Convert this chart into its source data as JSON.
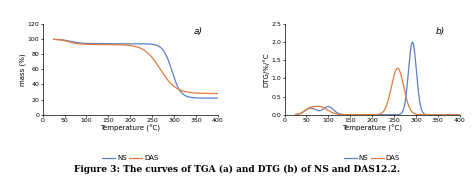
{
  "ns_color": "#5b80c8",
  "das_color": "#e07b39",
  "line_width": 0.9,
  "tga_xlim": [
    0,
    400
  ],
  "tga_ylim": [
    0,
    120
  ],
  "tga_xticks": [
    0,
    50,
    100,
    150,
    200,
    250,
    300,
    350,
    400
  ],
  "tga_yticks": [
    0,
    20,
    40,
    60,
    80,
    100,
    120
  ],
  "dtg_xlim": [
    0,
    400
  ],
  "dtg_ylim": [
    0,
    2.5
  ],
  "dtg_xticks": [
    0,
    50,
    100,
    150,
    200,
    250,
    300,
    350,
    400
  ],
  "dtg_yticks": [
    0,
    0.5,
    1.0,
    1.5,
    2.0,
    2.5
  ],
  "xlabel": "Temperature (°C)",
  "tga_ylabel": "mass (%)",
  "dtg_ylabel": "DTG/%/°C",
  "label_a": "a)",
  "label_b": "b)",
  "legend_ns": "NS",
  "legend_das": "DAS",
  "caption": "Figure 3: The curves of TGA (a) and DTG (b) of NS and DAS12.2.",
  "background_color": "#ffffff",
  "tick_fontsize": 4.5,
  "label_fontsize": 5.0,
  "legend_fontsize": 5.0,
  "caption_fontsize": 6.5,
  "annot_fontsize": 6.5
}
